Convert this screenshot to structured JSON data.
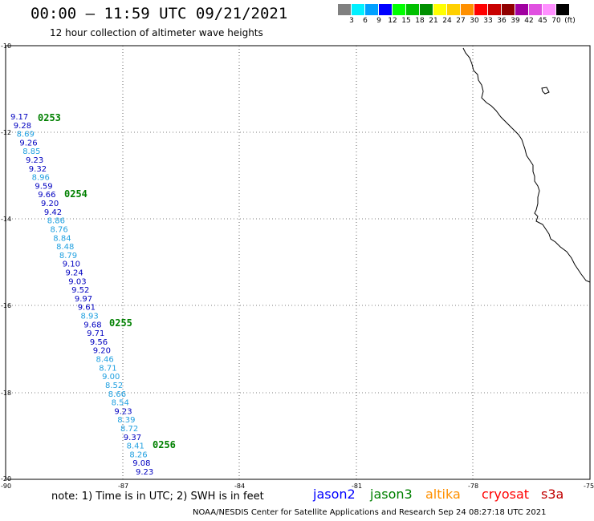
{
  "header": {
    "title": "00:00 — 11:59 UTC 09/21/2021",
    "subtitle": "12 hour collection of altimeter wave heights"
  },
  "legend": {
    "colors": [
      "#808080",
      "#00f0ff",
      "#00a0ff",
      "#0000ff",
      "#00ff00",
      "#00c000",
      "#009000",
      "#ffff00",
      "#ffd000",
      "#ff9000",
      "#ff0000",
      "#c80000",
      "#900000",
      "#a000a0",
      "#e050e0",
      "#ff90ff",
      "#000000"
    ],
    "labels": [
      "3",
      "6",
      "9",
      "12",
      "15",
      "18",
      "21",
      "24",
      "27",
      "30",
      "33",
      "36",
      "39",
      "42",
      "45",
      "70",
      "(ft)"
    ]
  },
  "map": {
    "lon_range": [
      -90,
      -75
    ],
    "lat_range": [
      -20,
      -10
    ],
    "y_ticks": [
      "-10",
      "-12",
      "-14",
      "-16",
      "-18",
      "-20"
    ],
    "x_ticks": [
      "-90",
      "-87",
      "-84",
      "-81",
      "-78",
      "-75"
    ],
    "tracks": [
      {
        "time": "0253",
        "color": "#008000"
      },
      {
        "time": "0254",
        "color": "#008000"
      },
      {
        "time": "0255",
        "color": "#008000"
      },
      {
        "time": "0256",
        "color": "#008000"
      }
    ],
    "values": [
      {
        "v": "9.17",
        "c": "#0000c0"
      },
      {
        "v": "9.28",
        "c": "#0000c0"
      },
      {
        "v": "8.69",
        "c": "#20a0e0"
      },
      {
        "v": "9.26",
        "c": "#0000c0"
      },
      {
        "v": "8.85",
        "c": "#20a0e0"
      },
      {
        "v": "9.23",
        "c": "#0000c0"
      },
      {
        "v": "9.32",
        "c": "#0000c0"
      },
      {
        "v": "8.96",
        "c": "#20a0e0"
      },
      {
        "v": "9.59",
        "c": "#0000c0"
      },
      {
        "v": "9.66",
        "c": "#0000c0"
      },
      {
        "v": "9.20",
        "c": "#0000c0"
      },
      {
        "v": "9.42",
        "c": "#0000c0"
      },
      {
        "v": "8.86",
        "c": "#20a0e0"
      },
      {
        "v": "8.76",
        "c": "#20a0e0"
      },
      {
        "v": "8.84",
        "c": "#20a0e0"
      },
      {
        "v": "8.48",
        "c": "#20a0e0"
      },
      {
        "v": "8.79",
        "c": "#20a0e0"
      },
      {
        "v": "9.10",
        "c": "#0000c0"
      },
      {
        "v": "9.24",
        "c": "#0000c0"
      },
      {
        "v": "9.03",
        "c": "#0000c0"
      },
      {
        "v": "9.52",
        "c": "#0000c0"
      },
      {
        "v": "9.97",
        "c": "#0000c0"
      },
      {
        "v": "9.61",
        "c": "#0000c0"
      },
      {
        "v": "8.93",
        "c": "#20a0e0"
      },
      {
        "v": "9.68",
        "c": "#0000c0"
      },
      {
        "v": "9.71",
        "c": "#0000c0"
      },
      {
        "v": "9.56",
        "c": "#0000c0"
      },
      {
        "v": "9.20",
        "c": "#0000c0"
      },
      {
        "v": "8.46",
        "c": "#20a0e0"
      },
      {
        "v": "8.71",
        "c": "#20a0e0"
      },
      {
        "v": "9.00",
        "c": "#20a0e0"
      },
      {
        "v": "8.52",
        "c": "#20a0e0"
      },
      {
        "v": "8.66",
        "c": "#20a0e0"
      },
      {
        "v": "8.54",
        "c": "#20a0e0"
      },
      {
        "v": "9.23",
        "c": "#0000c0"
      },
      {
        "v": "8.39",
        "c": "#20a0e0"
      },
      {
        "v": "8.72",
        "c": "#20a0e0"
      },
      {
        "v": "9.37",
        "c": "#0000c0"
      },
      {
        "v": "8.41",
        "c": "#20a0e0"
      },
      {
        "v": "8.26",
        "c": "#20a0e0"
      },
      {
        "v": "9.08",
        "c": "#0000c0"
      },
      {
        "v": "9.23",
        "c": "#0000c0"
      }
    ]
  },
  "note": "note:  1) Time is in UTC;  2) SWH is in feet",
  "satellites": [
    {
      "name": "jason2",
      "color": "#0000ff"
    },
    {
      "name": "jason3",
      "color": "#008000"
    },
    {
      "name": "altika",
      "color": "#ff9000"
    },
    {
      "name": "cryosat",
      "color": "#ff0000"
    },
    {
      "name": "s3a",
      "color": "#c00000"
    }
  ],
  "footer": "NOAA/NESDIS Center for Satellite Applications and Research     Sep 24 08:27:18 UTC 2021"
}
